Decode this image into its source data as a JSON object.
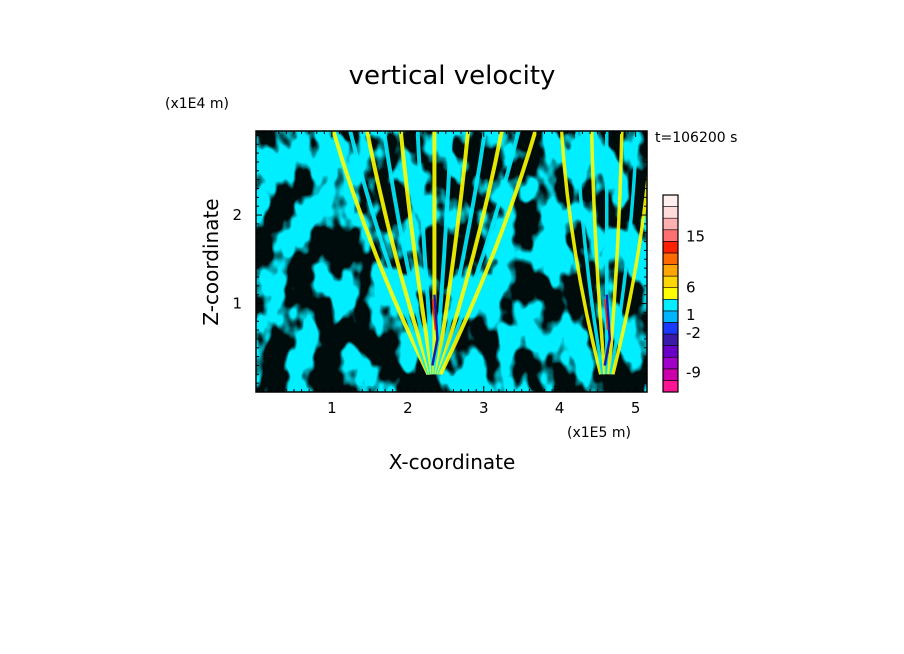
{
  "chart_data": {
    "type": "heatmap",
    "title": "vertical velocity",
    "xlabel": "X-coordinate",
    "ylabel": "Z-coordinate",
    "x_unit": "(x1E5 m)",
    "y_unit": "(x1E4 m)",
    "time_label": "t=106200 s",
    "xlim": [
      0,
      5.15
    ],
    "ylim": [
      0,
      2.95
    ],
    "x_ticks": [
      1,
      2,
      3,
      4,
      5
    ],
    "y_ticks": [
      1,
      2
    ],
    "colors": {
      "positive_field": "#ffff00",
      "negative_field": "#00eeff",
      "frame": "#000000"
    },
    "colorbar": {
      "levels": [
        {
          "color": "#ff1493"
        },
        {
          "color": "#cc00aa"
        },
        {
          "color": "#a000c8"
        },
        {
          "color": "#6a00c8"
        },
        {
          "color": "#3a1aa8"
        },
        {
          "color": "#1a3aff"
        },
        {
          "color": "#00b4ff"
        },
        {
          "color": "#00eeff"
        },
        {
          "color": "#ffff00"
        },
        {
          "color": "#ffd700"
        },
        {
          "color": "#ffa500"
        },
        {
          "color": "#ff6a00"
        },
        {
          "color": "#ff2000"
        },
        {
          "color": "#ff7070"
        },
        {
          "color": "#ffb0b0"
        },
        {
          "color": "#ffdcdc"
        },
        {
          "color": "#fff0f0"
        }
      ],
      "tick_labels": [
        {
          "text": "15",
          "pos": 0.79
        },
        {
          "text": "6",
          "pos": 0.53
        },
        {
          "text": "1",
          "pos": 0.39
        },
        {
          "text": "-2",
          "pos": 0.3
        },
        {
          "text": "-9",
          "pos": 0.1
        }
      ]
    }
  }
}
